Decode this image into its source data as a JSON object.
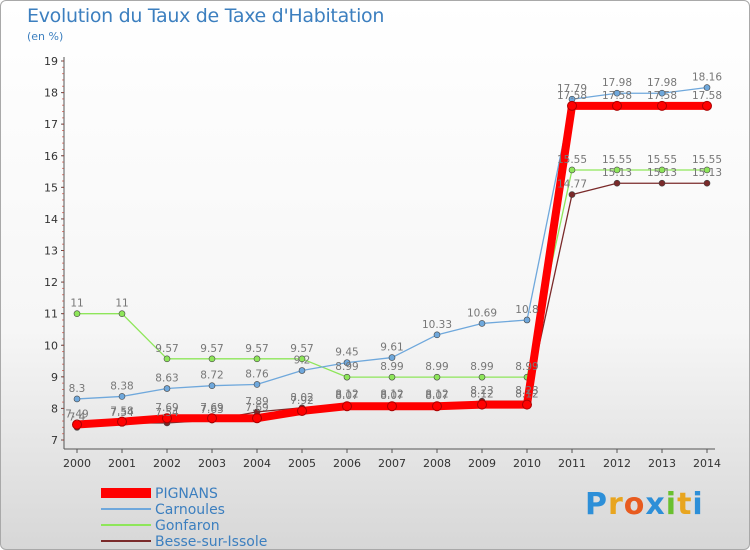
{
  "title": "Evolution du Taux de Taxe d'Habitation",
  "subtitle": "(en %)",
  "logo": [
    "P",
    "r",
    "o",
    "x",
    "i",
    "t",
    "i"
  ],
  "chart_data": {
    "type": "line",
    "x": [
      2000,
      2001,
      2002,
      2003,
      2004,
      2005,
      2006,
      2007,
      2008,
      2009,
      2010,
      2011,
      2012,
      2013,
      2014
    ],
    "ylim": [
      7,
      19
    ],
    "yticks": [
      7,
      8,
      9,
      10,
      11,
      12,
      13,
      14,
      15,
      16,
      17,
      18,
      19
    ],
    "grid": false,
    "legend_position": "bottom-left",
    "series": [
      {
        "name": "PIGNANS",
        "color": "#ff0000",
        "values": [
          7.49,
          7.58,
          7.69,
          7.69,
          7.69,
          7.92,
          8.07,
          8.07,
          8.07,
          8.12,
          8.12,
          17.58,
          17.58,
          17.58,
          17.58
        ]
      },
      {
        "name": "Carnoules",
        "color": "#6fa8dc",
        "values": [
          8.3,
          8.38,
          8.63,
          8.72,
          8.76,
          9.2,
          9.45,
          9.61,
          10.33,
          10.69,
          10.8,
          17.79,
          17.98,
          17.98,
          18.16
        ]
      },
      {
        "name": "Gonfaron",
        "color": "#8ee65a",
        "values": [
          11,
          11,
          9.57,
          9.57,
          9.57,
          9.57,
          8.99,
          8.99,
          8.99,
          8.99,
          8.99,
          15.55,
          15.55,
          15.55,
          15.55
        ]
      },
      {
        "name": "Besse-sur-Issole",
        "color": "#7a2a2a",
        "values": [
          7.4,
          7.54,
          7.54,
          7.63,
          7.89,
          8.02,
          8.12,
          8.12,
          8.12,
          8.23,
          8.23,
          14.77,
          15.13,
          15.13,
          15.13
        ]
      }
    ]
  }
}
